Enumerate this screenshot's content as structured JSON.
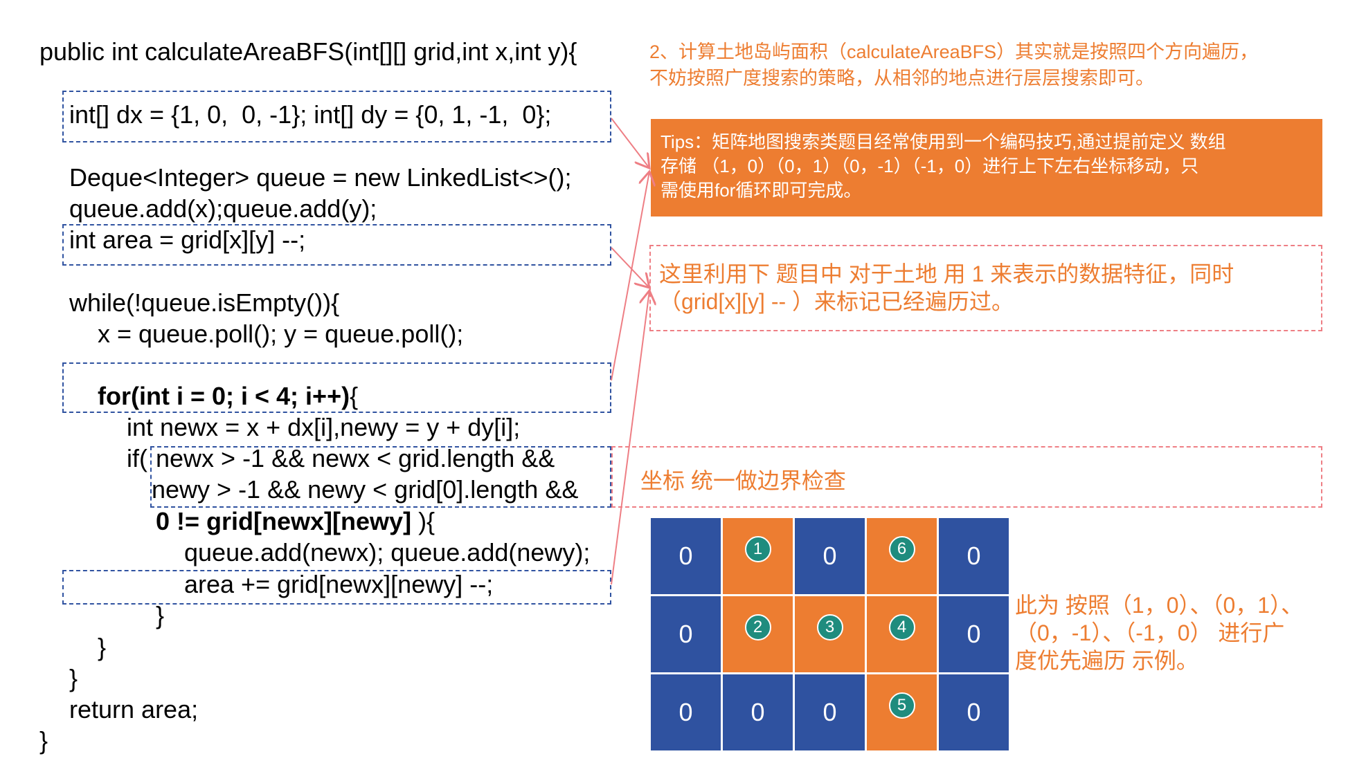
{
  "colors": {
    "orange": "#ED7D31",
    "blue": "#2F52A0",
    "teal": "#1F8C7E",
    "annotation_red": "#EE7E84"
  },
  "code": {
    "signature": "public int calculateAreaBFS(int[][] grid,int x,int y){",
    "lines": [
      "int[] dx = {1, 0,  0, -1}; int[] dy = {0, 1, -1,  0};",
      "Deque<Integer> queue = new LinkedList<>();",
      "queue.add(x);queue.add(y);",
      "int area = grid[x][y] --;",
      "while(!queue.isEmpty()){",
      "x = queue.poll(); y = queue.poll();",
      "for(int i = 0; i < 4; i++)",
      "{",
      "int newx = x + dx[i],newy = y + dy[i];",
      "if(",
      "newx > -1 && newx < grid.length &&",
      "newy > -1 && newy < grid[0].length &&",
      "0 != grid[newx][newy]",
      " ){",
      "queue.add(newx); queue.add(newy);",
      "area += grid[newx][newy] --;",
      "}",
      "}",
      "}",
      "return area;",
      "}"
    ]
  },
  "notes": {
    "intro": [
      "2、计算土地岛屿面积（calculateAreaBFS）其实就是按照四个方向遍历，",
      "不妨按照广度搜索的策略，从相邻的地点进行层层搜索即可。"
    ],
    "tips": [
      "Tips：矩阵地图搜索类题目经常使用到一个编码技巧,通过提前定义 数组",
      "存储 （1，0）（0，1）（0，-1）（-1，0）进行上下左右坐标移动，只",
      "需使用for循环即可完成。"
    ],
    "marker": [
      "这里利用下 题目中 对于土地 用 1 来表示的数据特征，同时",
      "（grid[x][y] -- ）来标记已经遍历过。"
    ],
    "bounds": "坐标 统一做边界检查",
    "example": [
      "此为 按照（1，0）、（0，1）、",
      "（0，-1）、（-1，0） 进行广",
      "度优先遍历 示例。"
    ]
  },
  "grid": {
    "cells": [
      {
        "value": "0",
        "land": false
      },
      {
        "value": "",
        "land": true,
        "order": "1"
      },
      {
        "value": "0",
        "land": false
      },
      {
        "value": "",
        "land": true,
        "order": "6"
      },
      {
        "value": "0",
        "land": false
      },
      {
        "value": "0",
        "land": false
      },
      {
        "value": "",
        "land": true,
        "order": "2"
      },
      {
        "value": "",
        "land": true,
        "order": "3"
      },
      {
        "value": "",
        "land": true,
        "order": "4"
      },
      {
        "value": "0",
        "land": false
      },
      {
        "value": "0",
        "land": false
      },
      {
        "value": "0",
        "land": false
      },
      {
        "value": "0",
        "land": false
      },
      {
        "value": "",
        "land": true,
        "order": "5"
      },
      {
        "value": "0",
        "land": false
      }
    ]
  }
}
